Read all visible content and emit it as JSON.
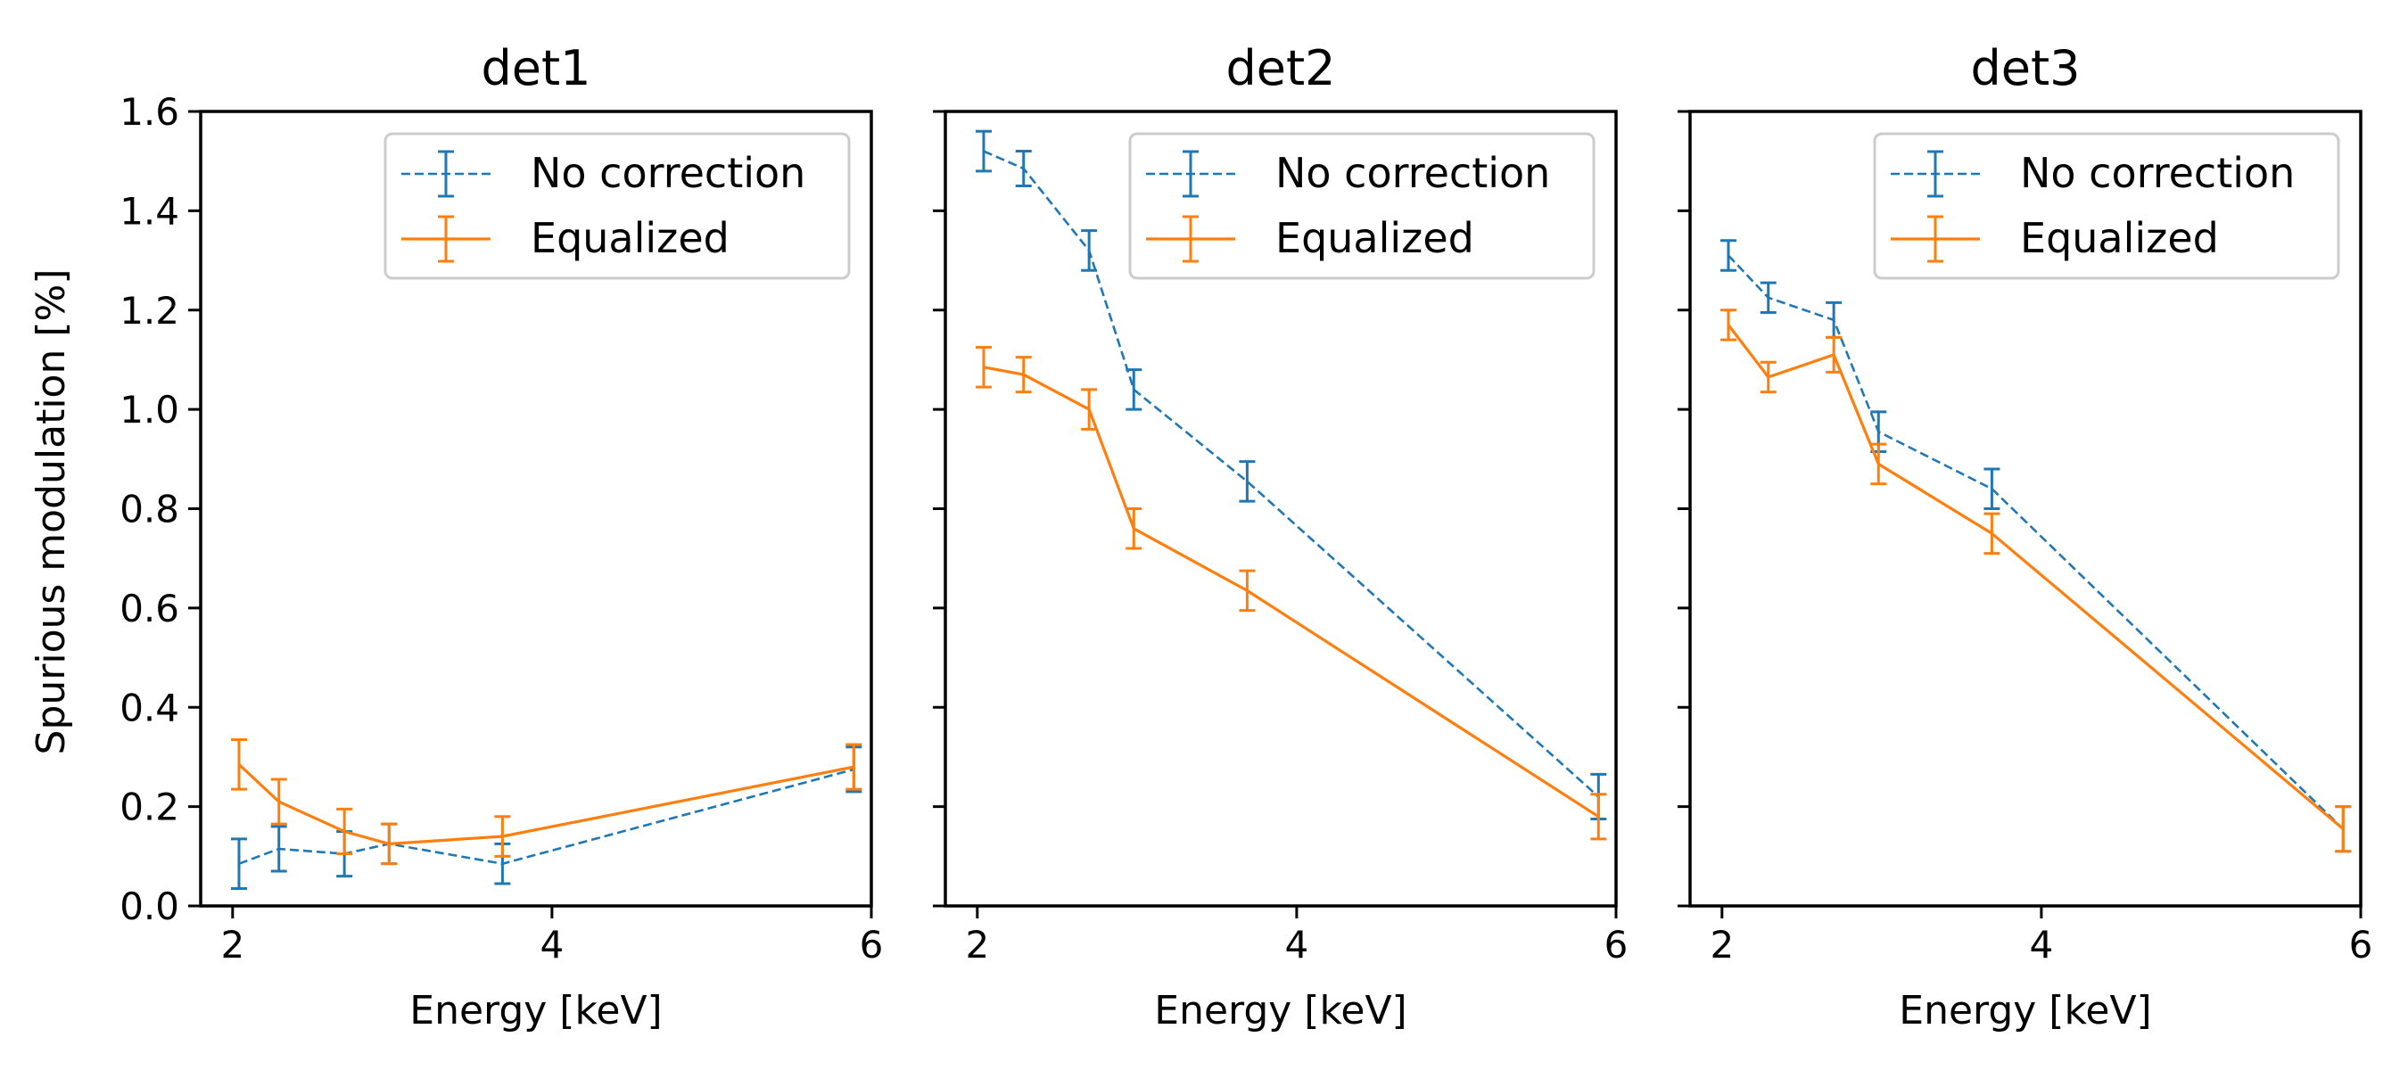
{
  "colors": {
    "no_correction": "#1f77b4",
    "equalized": "#ff7f0e",
    "axes": "#000000",
    "background": "#ffffff"
  },
  "chart_data": [
    {
      "type": "line",
      "title": "det1",
      "xlabel": "Energy [keV]",
      "ylabel": "Spurious modulation [%]",
      "xlim": [
        1.8,
        6
      ],
      "ylim": [
        0,
        1.6
      ],
      "xticks": [
        2,
        4,
        6
      ],
      "yticks": [
        0.0,
        0.2,
        0.4,
        0.6,
        0.8,
        1.0,
        1.2,
        1.4,
        1.6
      ],
      "ytick_labels": [
        "0.0",
        "0.2",
        "0.4",
        "0.6",
        "0.8",
        "1.0",
        "1.2",
        "1.4",
        "1.6"
      ],
      "legend": {
        "position": "top-right",
        "entries": [
          "No correction",
          "Equalized"
        ]
      },
      "x": [
        2.04,
        2.29,
        2.7,
        2.98,
        3.69,
        5.89
      ],
      "series": [
        {
          "name": "No correction",
          "style": "dashed",
          "values": [
            0.085,
            0.115,
            0.105,
            0.125,
            0.085,
            0.275
          ],
          "errors": [
            0.05,
            0.045,
            0.045,
            0.04,
            0.04,
            0.045
          ]
        },
        {
          "name": "Equalized",
          "style": "solid",
          "values": [
            0.285,
            0.21,
            0.15,
            0.125,
            0.14,
            0.28
          ],
          "errors": [
            0.05,
            0.045,
            0.045,
            0.04,
            0.04,
            0.045
          ]
        }
      ]
    },
    {
      "type": "line",
      "title": "det2",
      "xlabel": "Energy [keV]",
      "ylabel": "",
      "xlim": [
        1.8,
        6
      ],
      "ylim": [
        0,
        1.6
      ],
      "xticks": [
        2,
        4,
        6
      ],
      "yticks": [
        0.0,
        0.2,
        0.4,
        0.6,
        0.8,
        1.0,
        1.2,
        1.4,
        1.6
      ],
      "ytick_labels": [],
      "legend": {
        "position": "top-right",
        "entries": [
          "No correction",
          "Equalized"
        ]
      },
      "x": [
        2.04,
        2.29,
        2.7,
        2.98,
        3.69,
        5.89
      ],
      "series": [
        {
          "name": "No correction",
          "style": "dashed",
          "values": [
            1.52,
            1.485,
            1.32,
            1.04,
            0.855,
            0.22
          ],
          "errors": [
            0.04,
            0.035,
            0.04,
            0.04,
            0.04,
            0.045
          ]
        },
        {
          "name": "Equalized",
          "style": "solid",
          "values": [
            1.085,
            1.07,
            1.0,
            0.76,
            0.635,
            0.18
          ],
          "errors": [
            0.04,
            0.035,
            0.04,
            0.04,
            0.04,
            0.045
          ]
        }
      ]
    },
    {
      "type": "line",
      "title": "det3",
      "xlabel": "Energy [keV]",
      "ylabel": "",
      "xlim": [
        1.8,
        6
      ],
      "ylim": [
        0,
        1.6
      ],
      "xticks": [
        2,
        4,
        6
      ],
      "yticks": [
        0.0,
        0.2,
        0.4,
        0.6,
        0.8,
        1.0,
        1.2,
        1.4,
        1.6
      ],
      "ytick_labels": [],
      "legend": {
        "position": "top-right",
        "entries": [
          "No correction",
          "Equalized"
        ]
      },
      "x": [
        2.04,
        2.29,
        2.7,
        2.98,
        3.69,
        5.89
      ],
      "series": [
        {
          "name": "No correction",
          "style": "dashed",
          "values": [
            1.31,
            1.225,
            1.18,
            0.955,
            0.84,
            0.155
          ],
          "errors": [
            0.03,
            0.03,
            0.035,
            0.04,
            0.04,
            0.045
          ]
        },
        {
          "name": "Equalized",
          "style": "solid",
          "values": [
            1.17,
            1.065,
            1.11,
            0.89,
            0.75,
            0.155
          ],
          "errors": [
            0.03,
            0.03,
            0.035,
            0.04,
            0.04,
            0.045
          ]
        }
      ]
    }
  ]
}
